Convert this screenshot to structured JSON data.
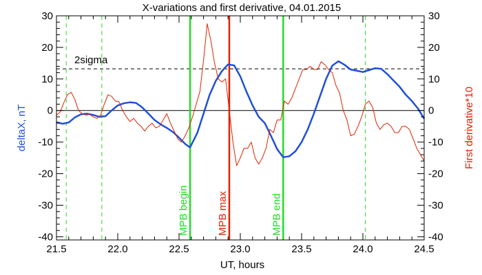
{
  "chart_data": {
    "type": "line",
    "title": "X-variations and first derivative, 04.01.2015",
    "xlabel": "UT, hours",
    "ylabel_left": "deltaX, nT",
    "ylabel_right": "First derivative*10",
    "xlim": [
      21.5,
      24.5
    ],
    "ylim": [
      -41,
      30
    ],
    "x_ticks": [
      21.5,
      22.0,
      22.5,
      23.0,
      23.5,
      24.0,
      24.5
    ],
    "x_tick_labels": [
      "21.5",
      "22.0",
      "22.5",
      "23.0",
      "23.5",
      "24.0",
      "24.5"
    ],
    "y_ticks": [
      30,
      20,
      10,
      0,
      -10,
      -20,
      -30,
      -40
    ],
    "y_tick_labels": [
      "30",
      "20",
      "10",
      "0",
      "-10",
      "-20",
      "-30",
      "-40"
    ],
    "threshold": {
      "label": "2sigma",
      "value": 13.2
    },
    "markers": [
      {
        "label": "MPB begin",
        "x": 22.59,
        "color": "#22dd22"
      },
      {
        "label": "MPB max",
        "x": 22.91,
        "color": "#dd2200"
      },
      {
        "label": "MPB end",
        "x": 23.35,
        "color": "#22dd22"
      }
    ],
    "dashed_markers": [
      21.58,
      21.87,
      24.02
    ],
    "series": [
      {
        "color": "#1f4fd8",
        "axis": "left",
        "x": [
          21.5,
          21.55,
          21.6,
          21.65,
          21.7,
          21.75,
          21.8,
          21.85,
          21.9,
          21.95,
          22.0,
          22.05,
          22.1,
          22.15,
          22.2,
          22.25,
          22.3,
          22.35,
          22.4,
          22.45,
          22.5,
          22.55,
          22.59,
          22.65,
          22.7,
          22.75,
          22.8,
          22.85,
          22.9,
          22.95,
          23.0,
          23.05,
          23.1,
          23.15,
          23.2,
          23.25,
          23.3,
          23.35,
          23.4,
          23.45,
          23.5,
          23.55,
          23.6,
          23.65,
          23.7,
          23.75,
          23.8,
          23.85,
          23.9,
          23.95,
          24.0,
          24.05,
          24.1,
          24.15,
          24.2,
          24.25,
          24.3,
          24.35,
          24.4,
          24.45,
          24.5
        ],
        "values": [
          -3.7,
          -4.2,
          -3.8,
          -2.2,
          -1.2,
          -1.0,
          -1.4,
          -2.0,
          -1.8,
          0.0,
          1.6,
          2.3,
          2.6,
          2.4,
          1.0,
          -1.0,
          -3.0,
          -4.4,
          -5.5,
          -6.8,
          -8.6,
          -10.6,
          -11.7,
          -7.0,
          -1.0,
          5.0,
          9.4,
          12.5,
          14.6,
          14.3,
          10.8,
          6.0,
          1.6,
          -2.0,
          -4.0,
          -8.0,
          -12.2,
          -14.8,
          -14.5,
          -12.9,
          -10.0,
          -6.0,
          -1.0,
          4.5,
          10.0,
          14.2,
          15.6,
          14.5,
          13.0,
          12.6,
          12.2,
          12.8,
          13.4,
          13.2,
          11.5,
          9.5,
          7.5,
          5.0,
          3.0,
          0.6,
          -2.6
        ]
      },
      {
        "color": "#dd2200",
        "axis": "right",
        "x": [
          21.5,
          21.53,
          21.56,
          21.59,
          21.62,
          21.65,
          21.68,
          21.71,
          21.74,
          21.77,
          21.8,
          21.83,
          21.86,
          21.89,
          21.92,
          21.95,
          21.98,
          22.01,
          22.04,
          22.07,
          22.1,
          22.13,
          22.16,
          22.19,
          22.22,
          22.25,
          22.28,
          22.31,
          22.34,
          22.37,
          22.4,
          22.43,
          22.46,
          22.49,
          22.52,
          22.55,
          22.58,
          22.61,
          22.64,
          22.67,
          22.7,
          22.73,
          22.76,
          22.79,
          22.82,
          22.85,
          22.88,
          22.91,
          22.94,
          22.97,
          23.0,
          23.03,
          23.06,
          23.09,
          23.12,
          23.15,
          23.18,
          23.21,
          23.24,
          23.27,
          23.3,
          23.33,
          23.36,
          23.39,
          23.42,
          23.45,
          23.48,
          23.51,
          23.54,
          23.57,
          23.6,
          23.63,
          23.66,
          23.69,
          23.72,
          23.75,
          23.78,
          23.81,
          23.84,
          23.87,
          23.9,
          23.93,
          23.96,
          23.99,
          24.02,
          24.05,
          24.08,
          24.11,
          24.14,
          24.17,
          24.2,
          24.23,
          24.26,
          24.29,
          24.32,
          24.35,
          24.38,
          24.41,
          24.44,
          24.47,
          24.5
        ],
        "values": [
          -1.5,
          -0.5,
          2.5,
          5.0,
          5.8,
          3.5,
          0.0,
          -1.0,
          -1.5,
          -1.2,
          -2.0,
          -2.5,
          -1.5,
          2.0,
          5.0,
          4.5,
          3.0,
          2.8,
          0.0,
          -2.0,
          -3.5,
          -2.5,
          -4.0,
          -5.0,
          -6.5,
          -5.0,
          -4.0,
          -5.5,
          -5.0,
          -3.0,
          -1.0,
          -4.0,
          -6.5,
          -9.0,
          -10.0,
          -8.0,
          -5.5,
          -2.0,
          2.0,
          6.0,
          16.0,
          27.5,
          22.0,
          15.0,
          10.0,
          9.0,
          10.0,
          0.0,
          -10.0,
          -17.5,
          -15.0,
          -12.0,
          -12.0,
          -10.0,
          -15.0,
          -17.0,
          -15.0,
          -12.0,
          -6.0,
          -7.0,
          -3.0,
          -3.0,
          3.0,
          2.0,
          4.0,
          7.0,
          10.0,
          13.0,
          13.0,
          14.0,
          13.0,
          13.0,
          15.5,
          14.5,
          13.0,
          12.0,
          8.0,
          5.5,
          0.0,
          -3.0,
          -8.0,
          -7.5,
          -5.0,
          -2.0,
          2.0,
          3.0,
          1.0,
          -4.0,
          -6.0,
          -4.5,
          -4.0,
          -5.0,
          -7.0,
          -7.0,
          -5.0,
          -5.0,
          -6.0,
          -9.0,
          -12.0,
          -14.0,
          -16.0
        ]
      }
    ]
  }
}
